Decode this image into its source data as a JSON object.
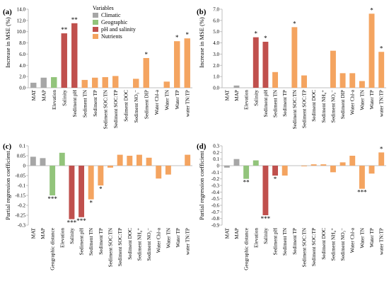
{
  "chart_data": [
    {
      "panel": "(a)",
      "type": "bar",
      "ylabel": "Increase in MSE (%)",
      "ylim": [
        0,
        14
      ],
      "yticks": [
        "0.0",
        "2.0",
        "4.0",
        "6.0",
        "8.0",
        "10.0",
        "12.0",
        "14.0"
      ],
      "categories": [
        "MAT",
        "MAP",
        "Elevation",
        "Salinity",
        "Sediment pH",
        "Sediment TN",
        "Sediment TP",
        "Sediment SOC:TN",
        "Sediment SOC:TP",
        "Sediment DOC",
        "Sediment NO₃⁻",
        "Sediment DIP",
        "Water Chl-a",
        "Water TN",
        "Water TP",
        "water TN:TP"
      ],
      "groups": [
        "Climatic",
        "Climatic",
        "Geographic",
        "pH and salinity",
        "pH and salinity",
        "Nutrients",
        "Nutrients",
        "Nutrients",
        "Nutrients",
        "Nutrients",
        "Nutrients",
        "Nutrients",
        "Nutrients",
        "Nutrients",
        "Nutrients",
        "Nutrients"
      ],
      "values": [
        0.9,
        1.8,
        1.9,
        9.7,
        11.5,
        1.4,
        1.8,
        1.9,
        2.1,
        0,
        1.6,
        5.3,
        0,
        1.1,
        8.3,
        8.8
      ],
      "stars": [
        "",
        "",
        "",
        "**",
        "**",
        "",
        "",
        "",
        "",
        "",
        "",
        "*",
        "",
        "",
        "*",
        "*"
      ],
      "legend": {
        "title": "Variables",
        "entries": [
          {
            "label": "Climatic",
            "color": "#a6a6a6"
          },
          {
            "label": "Geographic",
            "color": "#92c47b"
          },
          {
            "label": "pH and salinity",
            "color": "#c0504d"
          },
          {
            "label": "Nutrients",
            "color": "#f4a460"
          }
        ]
      }
    },
    {
      "panel": "(b)",
      "type": "bar",
      "ylabel": "Increase in MSE (%)",
      "ylim": [
        0,
        7
      ],
      "yticks": [
        "0.0",
        "1.0",
        "2.0",
        "3.0",
        "4.0",
        "5.0",
        "6.0",
        "7.0"
      ],
      "categories": [
        "MAT",
        "MAP",
        "Elevation",
        "Salinity",
        "Sediment pH",
        "Sediment TN",
        "Sediment TP",
        "Sediment SOC:TN",
        "Sediment SOC:TP",
        "Sediment DOC",
        "Sediment NH₄⁺",
        "Sediment NO₃⁻",
        "Sediment DIP",
        "Water Chl-a",
        "Water TN",
        "Water TP",
        "water TN:TP"
      ],
      "groups": [
        "Climatic",
        "Climatic",
        "Geographic",
        "pH and salinity",
        "pH and salinity",
        "Nutrients",
        "Nutrients",
        "Nutrients",
        "Nutrients",
        "Nutrients",
        "Nutrients",
        "Nutrients",
        "Nutrients",
        "Nutrients",
        "Nutrients",
        "Nutrients",
        "Nutrients"
      ],
      "values": [
        0,
        0.2,
        0,
        4.5,
        4.1,
        1.4,
        0,
        5.4,
        1.1,
        0,
        0,
        3.3,
        1.3,
        1.3,
        0.6,
        6.6,
        3.2
      ],
      "stars": [
        "",
        "",
        "",
        "*",
        "*",
        "",
        "",
        "*",
        "",
        "",
        "",
        "",
        "",
        "",
        "",
        "*",
        "*"
      ]
    },
    {
      "panel": "(c)",
      "type": "bar",
      "ylabel": "Partial regression coefficient",
      "ylim": [
        -0.3,
        0.1
      ],
      "yticks": [
        "-0.3",
        "-0.25",
        "-0.2",
        "-0.15",
        "-0.1",
        "-0.05",
        "0",
        "0.05",
        "0.1"
      ],
      "categories": [
        "MAT",
        "MAP",
        "Geographic distance",
        "Elevation",
        "Salinity",
        "Sediment pH",
        "Sediment TN",
        "Sediment TP",
        "Sediment SOC:TN",
        "Sediment SOC:TP",
        "Sediment DOC",
        "Sediment NH₄⁺",
        "Sediment NO₃⁻",
        "Water Chl-a",
        "Water TN",
        "Water TP",
        "water TN:TP"
      ],
      "groups": [
        "Climatic",
        "Climatic",
        "Geographic",
        "Geographic",
        "pH and salinity",
        "pH and salinity",
        "Nutrients",
        "Nutrients",
        "Nutrients",
        "Nutrients",
        "Nutrients",
        "Nutrients",
        "Nutrients",
        "Nutrients",
        "Nutrients",
        "Nutrients",
        "Nutrients"
      ],
      "values": [
        0.045,
        0.038,
        -0.15,
        0.065,
        -0.27,
        -0.26,
        -0.17,
        -0.1,
        -0.01,
        0.055,
        0.05,
        0.055,
        0.04,
        -0.065,
        -0.045,
        0,
        0.055
      ],
      "stars": [
        "",
        "",
        "***",
        "",
        "***",
        "***",
        "*",
        "*",
        "",
        "",
        "",
        "",
        "",
        "",
        "",
        "",
        ""
      ]
    },
    {
      "panel": "(d)",
      "type": "bar",
      "ylabel": "Partial regression coefficient",
      "ylim": [
        -0.9,
        0.3
      ],
      "yticks": [
        "-0.9",
        "-0.8",
        "-0.7",
        "-0.6",
        "-0.5",
        "-0.4",
        "-0.3",
        "-0.2",
        "-0.1",
        "0",
        "0.1",
        "0.2",
        "0.3"
      ],
      "categories": [
        "MAT",
        "MAP",
        "Geographic distance",
        "Elevation",
        "Salinity",
        "Sediment pH",
        "Sediment TN",
        "Sediment TP",
        "Sediment SOC:TN",
        "Sediment SOC:TP",
        "Sediment DOC",
        "Sediment NH₄⁺",
        "Sediment NO₃⁻",
        "Water Chl-a",
        "Water TN",
        "Water TP",
        "water TN:TP"
      ],
      "groups": [
        "Climatic",
        "Climatic",
        "Geographic",
        "Geographic",
        "pH and salinity",
        "pH and salinity",
        "Nutrients",
        "Nutrients",
        "Nutrients",
        "Nutrients",
        "Nutrients",
        "Nutrients",
        "Nutrients",
        "Nutrients",
        "Nutrients",
        "Nutrients",
        "Nutrients"
      ],
      "values": [
        -0.03,
        0.1,
        -0.2,
        0.08,
        -0.75,
        -0.15,
        -0.15,
        0,
        -0.01,
        0.02,
        0.02,
        -0.1,
        0.05,
        0.15,
        -0.35,
        -0.12,
        0.2
      ],
      "stars": [
        "",
        "",
        "**",
        "",
        "***",
        "*",
        "",
        "",
        "",
        "",
        "",
        "",
        "",
        "",
        "***",
        "",
        "*"
      ]
    }
  ],
  "colors": {
    "Climatic": "#a6a6a6",
    "Geographic": "#92c47b",
    "pH and salinity": "#c0504d",
    "Nutrients": "#f4a460",
    "axis": "#bfbfbf"
  }
}
